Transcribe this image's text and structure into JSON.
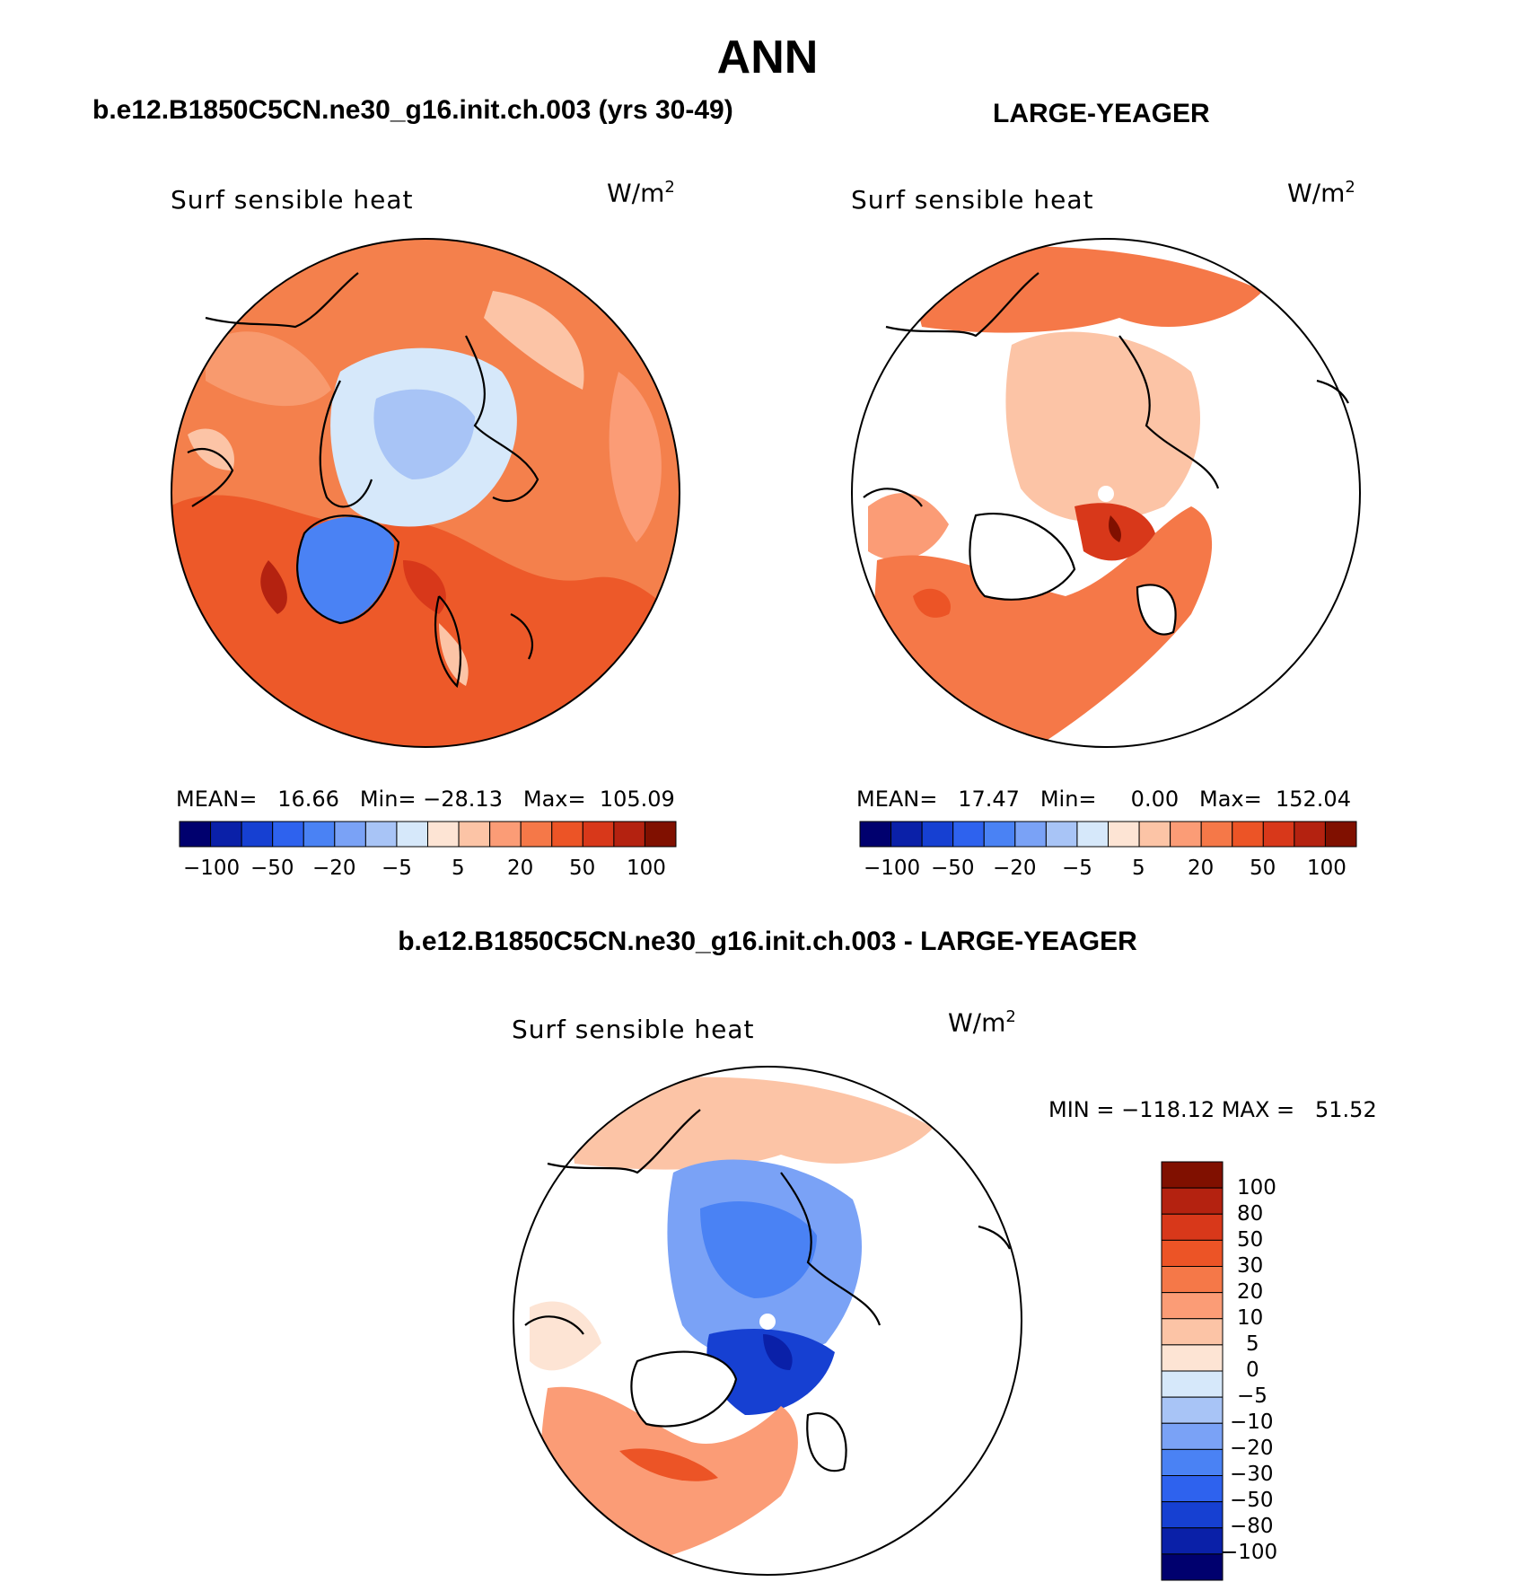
{
  "page": {
    "title": "ANN"
  },
  "panels": [
    {
      "id": "p1",
      "case_title": "b.e12.B1850C5CN.ne30_g16.init.ch.003 (yrs 30-49)",
      "variable": "Surf sensible heat",
      "units_base": "W/m",
      "units_exp": "2",
      "stats": "MEAN=   16.66   Min= −28.13   Max=  105.09"
    },
    {
      "id": "p2",
      "case_title": "LARGE-YEAGER",
      "variable": "Surf sensible heat",
      "units_base": "W/m",
      "units_exp": "2",
      "stats": "MEAN=   17.47   Min=     0.00   Max=  152.04"
    },
    {
      "id": "p3",
      "case_title": "b.e12.B1850C5CN.ne30_g16.init.ch.003 - LARGE-YEAGER",
      "variable": "Surf sensible heat",
      "units_base": "W/m",
      "units_exp": "2",
      "stats": "MIN = −118.12 MAX =   51.52"
    }
  ],
  "chart_data": [
    {
      "type": "heatmap",
      "projection": "north polar stereographic",
      "title": "Surf sensible heat",
      "subtitle": "b.e12.B1850C5CN.ne30_g16.init.ch.003 (yrs 30-49)",
      "units": "W/m2",
      "mean": 16.66,
      "min": -28.13,
      "max": 105.09,
      "colorbar_levels": [
        -100,
        -80,
        -50,
        -30,
        -20,
        -10,
        -5,
        0,
        5,
        10,
        20,
        30,
        50,
        80,
        100
      ],
      "colorbar_labels": [
        "−100",
        "−50",
        "−20",
        "−5",
        "5",
        "20",
        "50",
        "100"
      ]
    },
    {
      "type": "heatmap",
      "projection": "north polar stereographic",
      "title": "Surf sensible heat",
      "subtitle": "LARGE-YEAGER",
      "units": "W/m2",
      "mean": 17.47,
      "min": 0.0,
      "max": 152.04,
      "colorbar_levels": [
        -100,
        -80,
        -50,
        -30,
        -20,
        -10,
        -5,
        0,
        5,
        10,
        20,
        30,
        50,
        80,
        100
      ],
      "colorbar_labels": [
        "−100",
        "−50",
        "−20",
        "−5",
        "5",
        "20",
        "50",
        "100"
      ]
    },
    {
      "type": "heatmap",
      "projection": "north polar stereographic",
      "title": "Surf sensible heat",
      "subtitle": "b.e12.B1850C5CN.ne30_g16.init.ch.003 - LARGE-YEAGER",
      "units": "W/m2",
      "min": -118.12,
      "max": 51.52,
      "colorbar_orientation": "vertical",
      "colorbar_levels": [
        -100,
        -80,
        -50,
        -30,
        -20,
        -10,
        -5,
        0,
        5,
        10,
        20,
        30,
        50,
        80,
        100
      ],
      "colorbar_labels": [
        "100",
        "80",
        "50",
        "30",
        "20",
        "10",
        "5",
        "0",
        "−5",
        "−10",
        "−20",
        "−30",
        "−50",
        "−80",
        "−100"
      ]
    }
  ],
  "colors": {
    "palette": [
      "#00006e",
      "#0a20a8",
      "#1640d2",
      "#2e62ee",
      "#4a82f4",
      "#7aa2f6",
      "#a8c4f6",
      "#d6e8fa",
      "#fde4d4",
      "#fcc4a6",
      "#fb9c76",
      "#f57848",
      "#ec5426",
      "#d8381a",
      "#b42210",
      "#801000"
    ]
  }
}
